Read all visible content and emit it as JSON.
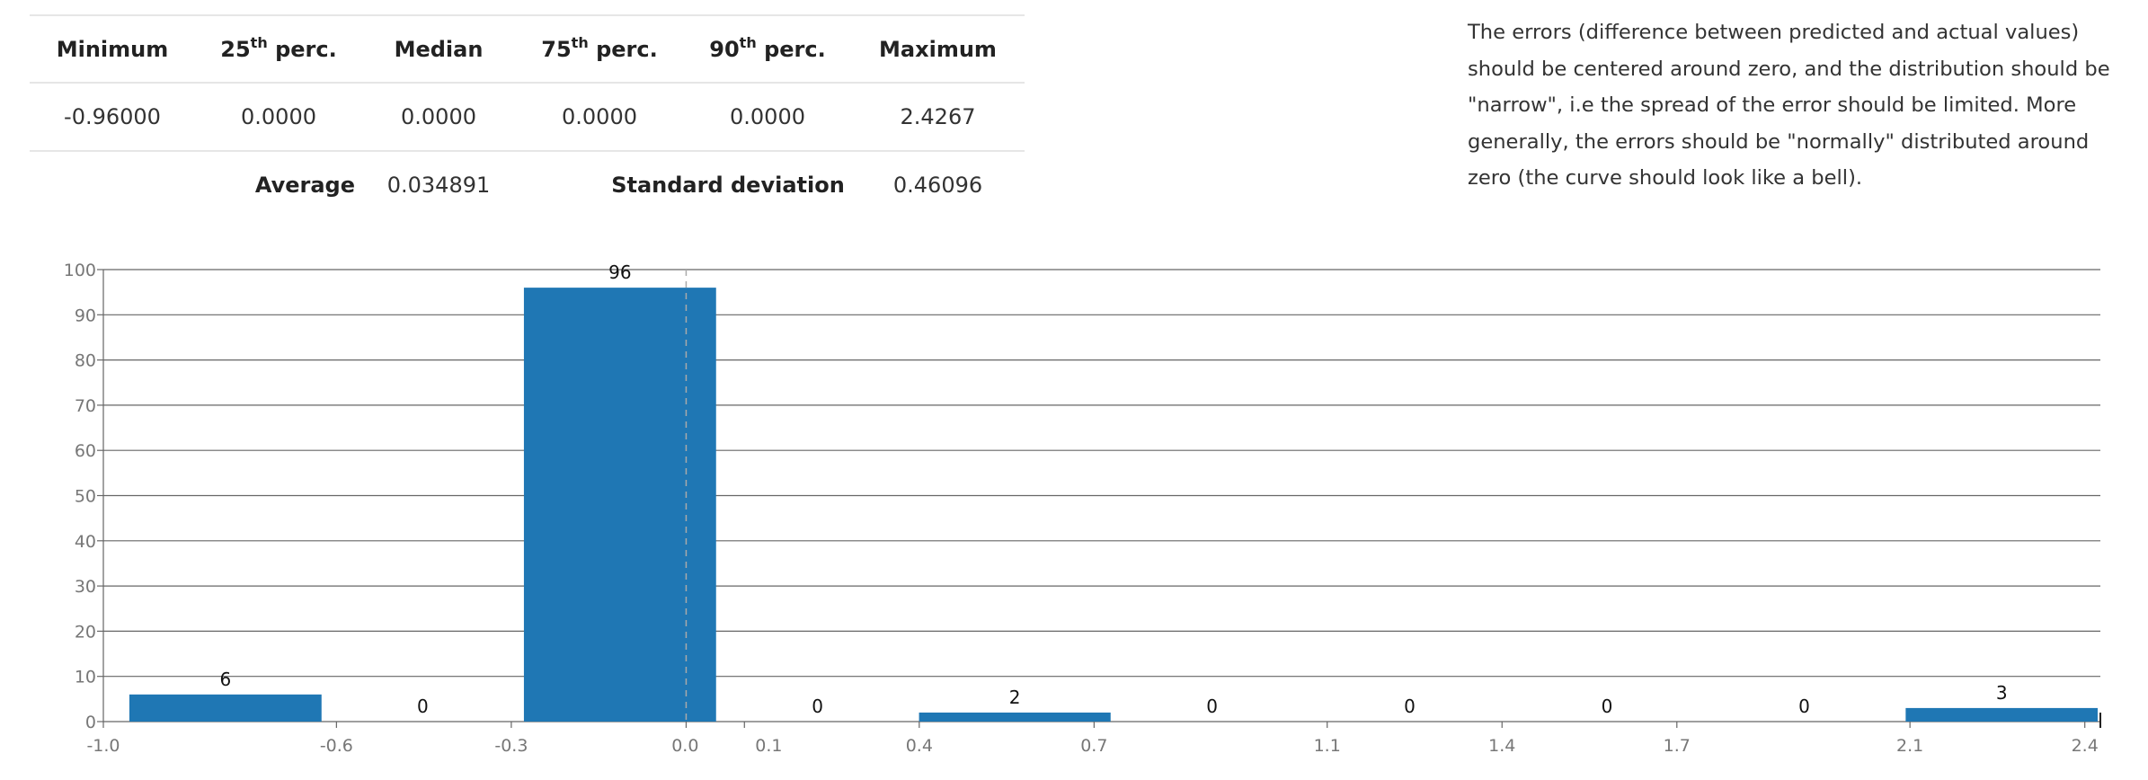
{
  "stats": {
    "headers": {
      "minimum": "Minimum",
      "p25_num": "25",
      "p25_sup": "th",
      "p25_word": " perc.",
      "median": "Median",
      "p75_num": "75",
      "p75_sup": "th",
      "p75_word": " perc.",
      "p90_num": "90",
      "p90_sup": "th",
      "p90_word": " perc.",
      "maximum": "Maximum"
    },
    "values": {
      "minimum": "-0.96000",
      "p25": "0.0000",
      "median": "0.0000",
      "p75": "0.0000",
      "p90": "0.0000",
      "maximum": "2.4267"
    },
    "summary": {
      "average_label": "Average",
      "average_value": "0.034891",
      "std_label": "Standard deviation",
      "std_value": "0.46096"
    }
  },
  "explanation": "The errors (difference between predicted and actual values) should be centered around zero, and the distribution should be \"narrow\", i.e the spread of the error should be limited. More generally, the errors should be \"normally\" distributed around zero (the curve should look like a bell).",
  "chart_data": {
    "type": "bar",
    "title": "",
    "xlabel": "",
    "ylabel": "",
    "xlim": [
      -1.0,
      2.4267
    ],
    "ylim": [
      0,
      100
    ],
    "yticks": [
      0,
      10,
      20,
      30,
      40,
      50,
      60,
      70,
      80,
      90,
      100
    ],
    "xtick_labels": [
      "-1.0",
      "-0.6",
      "-0.3",
      "0.0",
      "0.1",
      "0.4",
      "0.7",
      "1.1",
      "1.4",
      "1.7",
      "2.1",
      "2.4"
    ],
    "bins": [
      {
        "x0": -0.96,
        "x1": -0.621,
        "count": 6
      },
      {
        "x0": -0.621,
        "x1": -0.283,
        "count": 0
      },
      {
        "x0": -0.283,
        "x1": 0.056,
        "count": 96
      },
      {
        "x0": 0.056,
        "x1": 0.395,
        "count": 0
      },
      {
        "x0": 0.395,
        "x1": 0.733,
        "count": 2
      },
      {
        "x0": 0.733,
        "x1": 1.072,
        "count": 0
      },
      {
        "x0": 1.072,
        "x1": 1.411,
        "count": 0
      },
      {
        "x0": 1.411,
        "x1": 1.749,
        "count": 0
      },
      {
        "x0": 1.749,
        "x1": 2.088,
        "count": 0
      },
      {
        "x0": 2.088,
        "x1": 2.4267,
        "count": 3
      }
    ],
    "zero_marker": 0.0,
    "grid": true,
    "colors": {
      "bar": "#1f77b4",
      "grid": "#666666",
      "axis_text": "#777777",
      "label_text": "#111111",
      "zero_line": "#aaaaaa"
    }
  }
}
